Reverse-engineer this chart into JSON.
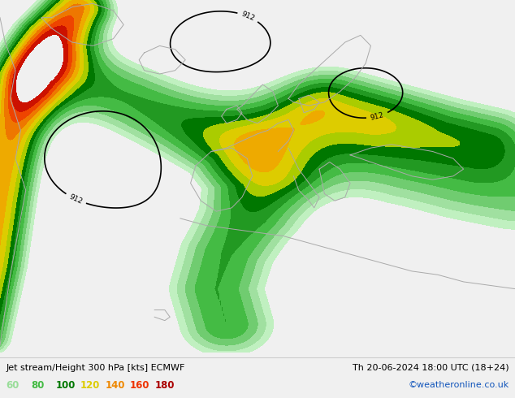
{
  "title_left": "Jet stream/Height 300 hPa [kts] ECMWF",
  "title_right": "Th 20-06-2024 18:00 UTC (18+24)",
  "credit": "©weatheronline.co.uk",
  "legend_values": [
    "60",
    "80",
    "100",
    "120",
    "140",
    "160",
    "180"
  ],
  "legend_colors": [
    "#99dd99",
    "#44bb44",
    "#007700",
    "#ddcc00",
    "#ee8800",
    "#ee3300",
    "#aa0000"
  ],
  "bg_color": "#f0f0f0",
  "map_land_color": "#c8e8b0",
  "map_sea_color": "#ddeedd",
  "figsize": [
    6.34,
    4.9
  ],
  "dpi": 100,
  "jet_levels": [
    60,
    70,
    80,
    90,
    100,
    110,
    120,
    130,
    140,
    150,
    160,
    170,
    180
  ],
  "jet_fill_colors": [
    "#c0f0c0",
    "#a0e0a0",
    "#70cc70",
    "#44bb44",
    "#229922",
    "#007700",
    "#aacc00",
    "#ddcc00",
    "#eeaa00",
    "#ee7700",
    "#ee4400",
    "#cc1100"
  ],
  "contour_color": "#000000",
  "coast_color": "#aaaaaa",
  "coast_lw": 0.7
}
